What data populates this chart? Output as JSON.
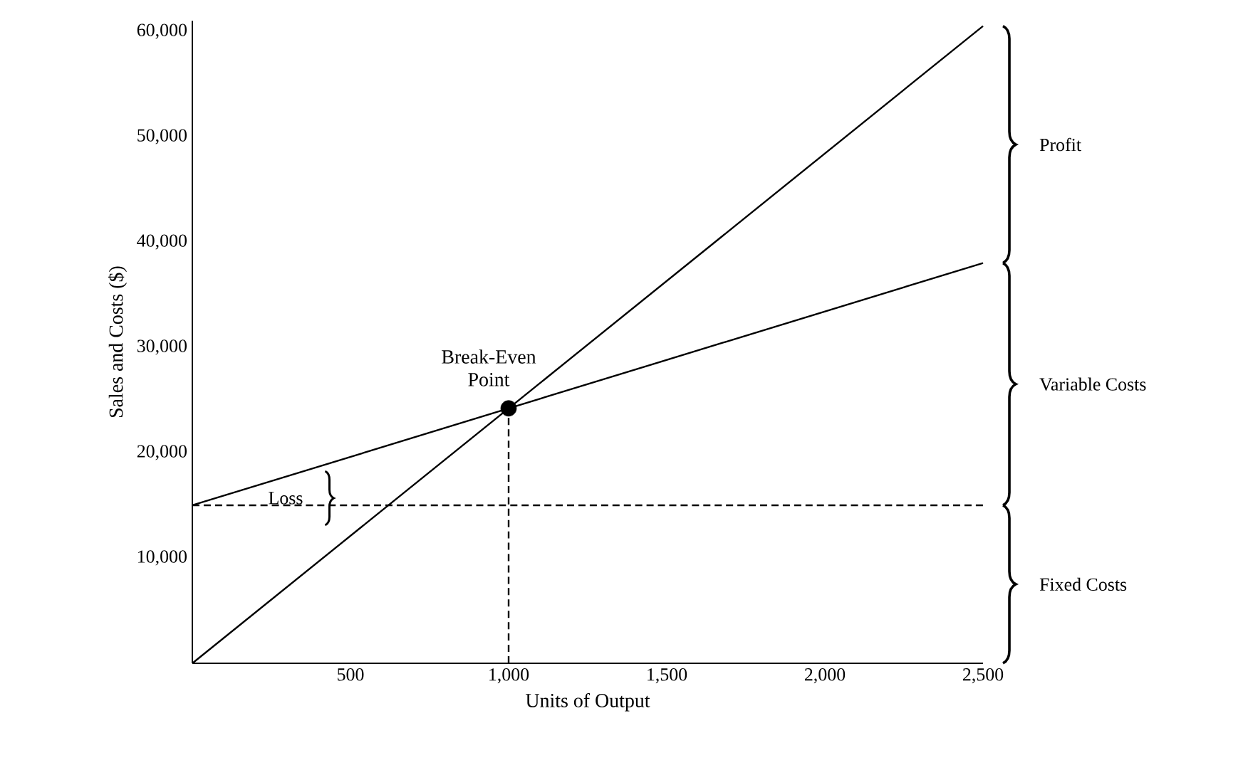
{
  "chart_data": {
    "type": "line",
    "xlabel": "Units of Output",
    "ylabel": "Sales and Costs ($)",
    "xlim": [
      0,
      2500
    ],
    "ylim": [
      0,
      61000
    ],
    "xticks": [
      500,
      {
        "value": 1000,
        "label": "1,000"
      },
      {
        "value": 1500,
        "label": "1,500"
      },
      {
        "value": 2000,
        "label": "2,000"
      },
      {
        "value": 2500,
        "label": "2,500"
      }
    ],
    "yticks": [
      {
        "value": 10000,
        "label": "10,000"
      },
      {
        "value": 20000,
        "label": "20,000"
      },
      {
        "value": 30000,
        "label": "30,000"
      },
      {
        "value": 40000,
        "label": "40,000"
      },
      {
        "value": 50000,
        "label": "50,000"
      },
      {
        "value": 60000,
        "label": "60,000"
      }
    ],
    "series": [
      {
        "color": "#000000",
        "x": [
          0,
          2500
        ],
        "values": [
          0,
          60500
        ]
      },
      {
        "color": "#000000",
        "x": [
          0,
          2500
        ],
        "values": [
          15000,
          38000
        ]
      },
      {
        "color": "#000000",
        "x": [
          0,
          2500
        ],
        "values": [
          15000,
          15000
        ],
        "line_style": "dashed"
      },
      {
        "color": "#000000",
        "x": [
          1000,
          1000
        ],
        "values": [
          0,
          24200
        ],
        "line_style": "dashed"
      },
      {
        "type": "scatter",
        "color": "#000000",
        "x": [
          1000
        ],
        "values": [
          24200
        ]
      }
    ],
    "annotations": [
      {
        "text": "Break-Even Point",
        "x": 1000,
        "y": 24200
      },
      {
        "text": "Loss",
        "x": 420,
        "y": 15000
      },
      "Profit",
      "Variable Costs",
      "Fixed Costs"
    ],
    "grid": false
  }
}
